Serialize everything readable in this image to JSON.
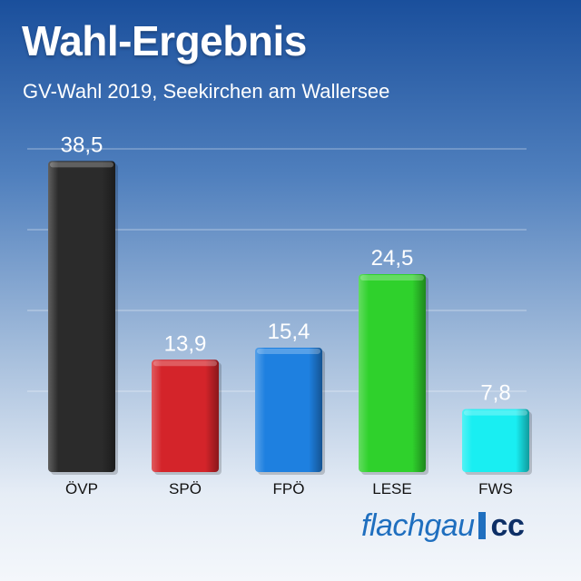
{
  "title": "Wahl-Ergebnis",
  "subtitle": "GV-Wahl 2019, Seekirchen am Wallersee",
  "logo": {
    "main": "flachgau",
    "suffix": "cc",
    "color": "#1f6fbf"
  },
  "chart_data": {
    "type": "bar",
    "categories": [
      "ÖVP",
      "SPÖ",
      "FPÖ",
      "LESE",
      "FWS"
    ],
    "values": [
      38.5,
      13.9,
      15.4,
      24.5,
      7.8
    ],
    "value_labels": [
      "38,5",
      "13,9",
      "15,4",
      "24,5",
      "7,8"
    ],
    "colors": [
      "#2b2b2b",
      "#d4242a",
      "#1e80e0",
      "#2fd12c",
      "#19eef2"
    ],
    "ylim": [
      0,
      40
    ],
    "grid": true
  }
}
